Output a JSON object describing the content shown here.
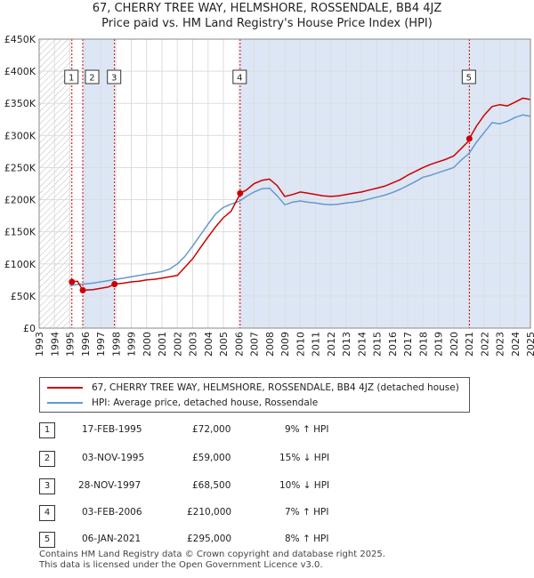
{
  "title_line1": "67, CHERRY TREE WAY, HELMSHORE, ROSSENDALE, BB4 4JZ",
  "title_line2": "Price paid vs. HM Land Registry's House Price Index (HPI)",
  "colors": {
    "price": "#cc0000",
    "hpi": "#6699cc",
    "shade": "#dde6f5",
    "hatch": "#bbbbbb",
    "grid": "#dddddd"
  },
  "legend": {
    "price_label": "67, CHERRY TREE WAY, HELMSHORE, ROSSENDALE, BB4 4JZ (detached house)",
    "hpi_label": "HPI: Average price, detached house, Rossendale"
  },
  "transactions": [
    {
      "id": "1",
      "date": "17-FEB-1995",
      "price": "£72,000",
      "hpi": "9% ↑ HPI"
    },
    {
      "id": "2",
      "date": "03-NOV-1995",
      "price": "£59,000",
      "hpi": "15% ↓ HPI"
    },
    {
      "id": "3",
      "date": "28-NOV-1997",
      "price": "£68,500",
      "hpi": "10% ↓ HPI"
    },
    {
      "id": "4",
      "date": "03-FEB-2006",
      "price": "£210,000",
      "hpi": "7% ↑ HPI"
    },
    {
      "id": "5",
      "date": "06-JAN-2021",
      "price": "£295,000",
      "hpi": "8% ↑ HPI"
    }
  ],
  "footer": {
    "line1": "Contains HM Land Registry data © Crown copyright and database right 2025.",
    "line2": "This data is licensed under the Open Government Licence v3.0."
  },
  "chart_data": {
    "type": "line",
    "title": "Price paid vs. HM Land Registry's House Price Index (HPI)",
    "xlim": [
      1993,
      2025
    ],
    "ylim": [
      0,
      450000
    ],
    "x_ticks": [
      1993,
      1994,
      1995,
      1996,
      1997,
      1998,
      1999,
      2000,
      2001,
      2002,
      2003,
      2004,
      2005,
      2006,
      2007,
      2008,
      2009,
      2010,
      2011,
      2012,
      2013,
      2014,
      2015,
      2016,
      2017,
      2018,
      2019,
      2020,
      2021,
      2022,
      2023,
      2024,
      2025
    ],
    "y_ticks": [
      0,
      50000,
      100000,
      150000,
      200000,
      250000,
      300000,
      350000,
      400000,
      450000
    ],
    "y_tick_labels": [
      "£0",
      "£50K",
      "£100K",
      "£150K",
      "£200K",
      "£250K",
      "£300K",
      "£350K",
      "£400K",
      "£450K"
    ],
    "grid": true,
    "sales": [
      {
        "label": "1",
        "x": 1995.13,
        "y": 72000
      },
      {
        "label": "2",
        "x": 1995.84,
        "y": 59000
      },
      {
        "label": "3",
        "x": 1997.91,
        "y": 68500
      },
      {
        "label": "4",
        "x": 2006.09,
        "y": 210000
      },
      {
        "label": "5",
        "x": 2021.02,
        "y": 295000
      }
    ],
    "series": [
      {
        "name": "HPI: Average price, detached house, Rossendale",
        "x": [
          1995.0,
          1995.5,
          1996.0,
          1996.5,
          1997.0,
          1997.5,
          1998.0,
          1998.5,
          1999.0,
          1999.5,
          2000.0,
          2000.5,
          2001.0,
          2001.5,
          2002.0,
          2002.5,
          2003.0,
          2003.5,
          2004.0,
          2004.5,
          2005.0,
          2005.5,
          2006.0,
          2006.5,
          2007.0,
          2007.5,
          2008.0,
          2008.5,
          2009.0,
          2009.5,
          2010.0,
          2010.5,
          2011.0,
          2011.5,
          2012.0,
          2012.5,
          2013.0,
          2013.5,
          2014.0,
          2014.5,
          2015.0,
          2015.5,
          2016.0,
          2016.5,
          2017.0,
          2017.5,
          2018.0,
          2018.5,
          2019.0,
          2019.5,
          2020.0,
          2020.5,
          2021.0,
          2021.5,
          2022.0,
          2022.5,
          2023.0,
          2023.5,
          2024.0,
          2024.5,
          2025.0
        ],
        "values": [
          66000,
          68000,
          69000,
          70000,
          72000,
          74000,
          76000,
          78000,
          80000,
          82000,
          84000,
          86000,
          88000,
          92000,
          100000,
          112000,
          128000,
          145000,
          162000,
          178000,
          188000,
          193000,
          197000,
          205000,
          212000,
          217000,
          218000,
          206000,
          192000,
          196000,
          198000,
          196000,
          195000,
          193000,
          192000,
          193000,
          195000,
          196000,
          198000,
          201000,
          204000,
          207000,
          211000,
          216000,
          222000,
          228000,
          235000,
          238000,
          242000,
          246000,
          250000,
          262000,
          272000,
          290000,
          305000,
          320000,
          318000,
          322000,
          328000,
          332000,
          330000
        ]
      },
      {
        "name": "67, CHERRY TREE WAY, HELMSHORE, ROSSENDALE, BB4 4JZ (detached house)",
        "x": [
          1995.0,
          1995.13,
          1995.5,
          1995.84,
          1996.5,
          1997.0,
          1997.5,
          1997.91,
          1998.5,
          1999.0,
          1999.5,
          2000.0,
          2000.5,
          2001.0,
          2001.5,
          2002.0,
          2002.5,
          2003.0,
          2003.5,
          2004.0,
          2004.5,
          2005.0,
          2005.5,
          2006.0,
          2006.09,
          2006.5,
          2007.0,
          2007.5,
          2008.0,
          2008.5,
          2009.0,
          2009.5,
          2010.0,
          2010.5,
          2011.0,
          2011.5,
          2012.0,
          2012.5,
          2013.0,
          2013.5,
          2014.0,
          2014.5,
          2015.0,
          2015.5,
          2016.0,
          2016.5,
          2017.0,
          2017.5,
          2018.0,
          2018.5,
          2019.0,
          2019.5,
          2020.0,
          2020.5,
          2021.0,
          2021.02,
          2021.5,
          2022.0,
          2022.5,
          2023.0,
          2023.5,
          2024.0,
          2024.5,
          2025.0
        ],
        "values": [
          72000,
          72000,
          73000,
          59000,
          60000,
          62000,
          64000,
          68500,
          70000,
          72000,
          73000,
          75000,
          76000,
          78000,
          80000,
          82000,
          95000,
          108000,
          125000,
          142000,
          158000,
          172000,
          182000,
          205000,
          210000,
          215000,
          225000,
          230000,
          232000,
          222000,
          205000,
          208000,
          212000,
          210000,
          208000,
          206000,
          205000,
          206000,
          208000,
          210000,
          212000,
          215000,
          218000,
          221000,
          226000,
          231000,
          238000,
          244000,
          250000,
          255000,
          259000,
          263000,
          268000,
          280000,
          292000,
          295000,
          315000,
          332000,
          345000,
          348000,
          346000,
          352000,
          358000,
          356000
        ]
      }
    ]
  }
}
